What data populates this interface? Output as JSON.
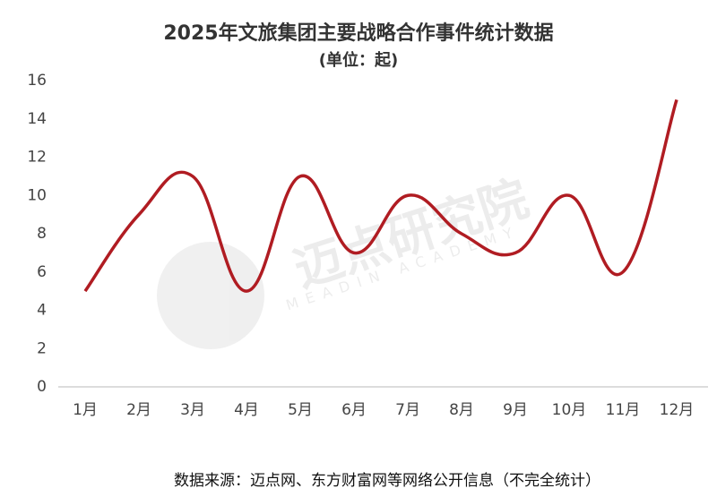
{
  "chart_data": {
    "type": "line",
    "title": "2025年文旅集团主要战略合作事件统计数据",
    "subtitle": "(单位：起)",
    "source": "数据来源：迈点网、东方财富网等网络公开信息（不完全统计）",
    "watermark": "迈点研究院",
    "watermark_sub": "MEADIN ACADEMY",
    "categories": [
      "1月",
      "2月",
      "3月",
      "4月",
      "5月",
      "6月",
      "7月",
      "8月",
      "9月",
      "10月",
      "11月",
      "12月"
    ],
    "values": [
      5,
      9,
      11,
      5,
      11,
      7,
      10,
      8,
      7,
      10,
      6,
      15
    ],
    "color": "#b01c22",
    "ylim": [
      0,
      16
    ],
    "yticks": [
      0,
      2,
      4,
      6,
      8,
      10,
      12,
      14,
      16
    ],
    "grid": false
  }
}
